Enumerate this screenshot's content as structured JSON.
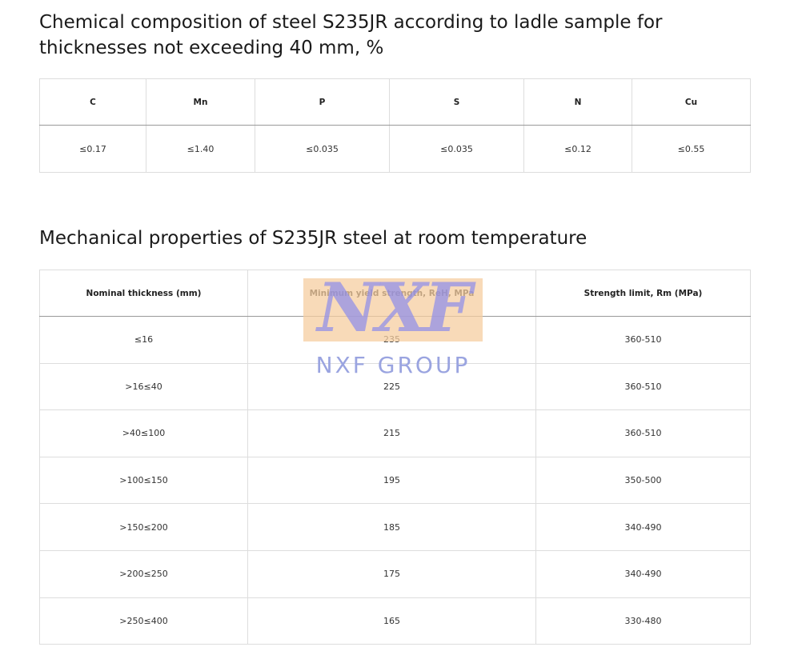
{
  "heading1": "Chemical composition of steel S235JR according to ladle sample for thicknesses not exceeding 40 mm, %",
  "table1": {
    "header": [
      "C",
      "Mn",
      "P",
      "S",
      "N",
      "Cu"
    ],
    "rows": [
      [
        "≤0.17",
        "≤1.40",
        "≤0.035",
        "≤0.035",
        "≤0.12",
        "≤0.55"
      ]
    ]
  },
  "heading2": "Mechanical properties of S235JR steel at room temperature",
  "table2": {
    "header": [
      "Nominal thickness (mm)",
      "Minimum yield strength, ReH, MPa",
      "Strength limit, Rm (MPa)"
    ],
    "rows": [
      [
        "≤16",
        "235",
        "360-510"
      ],
      [
        ">16≤40",
        "225",
        "360-510"
      ],
      [
        ">40≤100",
        "215",
        "360-510"
      ],
      [
        ">100≤150",
        "195",
        "350-500"
      ],
      [
        ">150≤200",
        "185",
        "340-490"
      ],
      [
        ">200≤250",
        "175",
        "340-490"
      ],
      [
        ">250≤400",
        "165",
        "330-480"
      ]
    ]
  },
  "watermark": {
    "logo": "NXF",
    "text": "NXF GROUP"
  }
}
